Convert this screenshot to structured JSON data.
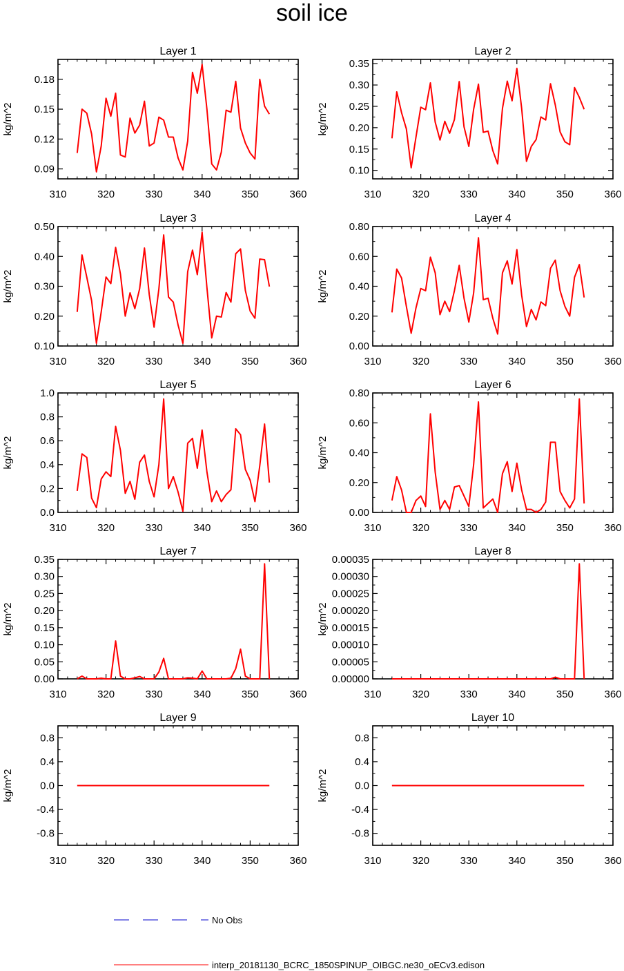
{
  "figure": {
    "title": "soil ice",
    "legend": {
      "obs_label": "No Obs",
      "obs_color": "#0000cc",
      "model_label": "interp_20181130_BCRC_1850SPINUP_OIBGC.ne30_oECv3.edison",
      "model_color": "#ff0000"
    }
  },
  "chart_data": [
    {
      "type": "line",
      "title": "Layer 1",
      "ylabel": "kg/m^2",
      "xlim": [
        310,
        360
      ],
      "ylim": [
        0.08,
        0.2
      ],
      "xticks": [
        "310",
        "320",
        "330",
        "340",
        "350",
        "360"
      ],
      "yticks": [
        "0.09",
        "0.12",
        "0.15",
        "0.18"
      ],
      "x": [
        314,
        315,
        316,
        317,
        318,
        319,
        320,
        321,
        322,
        323,
        324,
        325,
        326,
        327,
        328,
        329,
        330,
        331,
        332,
        333,
        334,
        335,
        336,
        337,
        338,
        339,
        340,
        341,
        342,
        343,
        344,
        345,
        346,
        347,
        348,
        349,
        350,
        351,
        352,
        353,
        354
      ],
      "values": [
        0.106,
        0.15,
        0.146,
        0.125,
        0.087,
        0.113,
        0.161,
        0.143,
        0.166,
        0.104,
        0.102,
        0.141,
        0.126,
        0.134,
        0.158,
        0.113,
        0.116,
        0.142,
        0.139,
        0.122,
        0.122,
        0.101,
        0.089,
        0.118,
        0.187,
        0.166,
        0.195,
        0.15,
        0.095,
        0.089,
        0.107,
        0.149,
        0.147,
        0.178,
        0.131,
        0.116,
        0.106,
        0.1,
        0.18,
        0.153,
        0.145
      ]
    },
    {
      "type": "line",
      "title": "Layer 2",
      "ylabel": "kg/m^2",
      "xlim": [
        310,
        360
      ],
      "ylim": [
        0.08,
        0.36
      ],
      "xticks": [
        "310",
        "320",
        "330",
        "340",
        "350",
        "360"
      ],
      "yticks": [
        "0.10",
        "0.15",
        "0.20",
        "0.25",
        "0.30",
        "0.35"
      ],
      "x": [
        314,
        315,
        316,
        317,
        318,
        319,
        320,
        321,
        322,
        323,
        324,
        325,
        326,
        327,
        328,
        329,
        330,
        331,
        332,
        333,
        334,
        335,
        336,
        337,
        338,
        339,
        340,
        341,
        342,
        343,
        344,
        345,
        346,
        347,
        348,
        349,
        350,
        351,
        352,
        353,
        354
      ],
      "values": [
        0.175,
        0.284,
        0.235,
        0.197,
        0.106,
        0.178,
        0.248,
        0.242,
        0.305,
        0.213,
        0.171,
        0.215,
        0.187,
        0.219,
        0.308,
        0.202,
        0.156,
        0.243,
        0.302,
        0.189,
        0.192,
        0.146,
        0.115,
        0.245,
        0.309,
        0.263,
        0.339,
        0.245,
        0.121,
        0.156,
        0.172,
        0.225,
        0.218,
        0.303,
        0.253,
        0.19,
        0.167,
        0.16,
        0.294,
        0.271,
        0.243
      ]
    },
    {
      "type": "line",
      "title": "Layer 3",
      "ylabel": "kg/m^2",
      "xlim": [
        310,
        360
      ],
      "ylim": [
        0.1,
        0.5
      ],
      "xticks": [
        "310",
        "320",
        "330",
        "340",
        "350",
        "360"
      ],
      "yticks": [
        "0.10",
        "0.20",
        "0.30",
        "0.40",
        "0.50"
      ],
      "x": [
        314,
        315,
        316,
        317,
        318,
        319,
        320,
        321,
        322,
        323,
        324,
        325,
        326,
        327,
        328,
        329,
        330,
        331,
        332,
        333,
        334,
        335,
        336,
        337,
        338,
        339,
        340,
        341,
        342,
        343,
        344,
        345,
        346,
        347,
        348,
        349,
        350,
        351,
        352,
        353,
        354
      ],
      "values": [
        0.214,
        0.405,
        0.33,
        0.252,
        0.109,
        0.214,
        0.331,
        0.309,
        0.43,
        0.341,
        0.2,
        0.278,
        0.225,
        0.292,
        0.428,
        0.272,
        0.163,
        0.291,
        0.472,
        0.264,
        0.247,
        0.17,
        0.109,
        0.349,
        0.421,
        0.339,
        0.481,
        0.296,
        0.127,
        0.2,
        0.197,
        0.279,
        0.247,
        0.409,
        0.425,
        0.286,
        0.217,
        0.193,
        0.391,
        0.389,
        0.299
      ]
    },
    {
      "type": "line",
      "title": "Layer 4",
      "ylabel": "kg/m^2",
      "xlim": [
        310,
        360
      ],
      "ylim": [
        0.0,
        0.8
      ],
      "xticks": [
        "310",
        "320",
        "330",
        "340",
        "350",
        "360"
      ],
      "yticks": [
        "0.00",
        "0.20",
        "0.40",
        "0.60",
        "0.80"
      ],
      "x": [
        314,
        315,
        316,
        317,
        318,
        319,
        320,
        321,
        322,
        323,
        324,
        325,
        326,
        327,
        328,
        329,
        330,
        331,
        332,
        333,
        334,
        335,
        336,
        337,
        338,
        339,
        340,
        341,
        342,
        343,
        344,
        345,
        346,
        347,
        348,
        349,
        350,
        351,
        352,
        353,
        354
      ],
      "values": [
        0.225,
        0.515,
        0.455,
        0.265,
        0.085,
        0.255,
        0.385,
        0.37,
        0.595,
        0.49,
        0.21,
        0.3,
        0.23,
        0.37,
        0.54,
        0.32,
        0.16,
        0.355,
        0.725,
        0.31,
        0.32,
        0.185,
        0.08,
        0.49,
        0.57,
        0.415,
        0.645,
        0.34,
        0.13,
        0.245,
        0.175,
        0.295,
        0.27,
        0.52,
        0.575,
        0.37,
        0.265,
        0.2,
        0.46,
        0.545,
        0.325
      ]
    },
    {
      "type": "line",
      "title": "Layer 5",
      "ylabel": "kg/m^2",
      "xlim": [
        310,
        360
      ],
      "ylim": [
        0.0,
        1.0
      ],
      "xticks": [
        "310",
        "320",
        "330",
        "340",
        "350",
        "360"
      ],
      "yticks": [
        "0.0",
        "0.2",
        "0.4",
        "0.6",
        "0.8",
        "1.0"
      ],
      "x": [
        314,
        315,
        316,
        317,
        318,
        319,
        320,
        321,
        322,
        323,
        324,
        325,
        326,
        327,
        328,
        329,
        330,
        331,
        332,
        333,
        334,
        335,
        336,
        337,
        338,
        339,
        340,
        341,
        342,
        343,
        344,
        345,
        346,
        347,
        348,
        349,
        350,
        351,
        352,
        353,
        354
      ],
      "values": [
        0.18,
        0.49,
        0.46,
        0.12,
        0.04,
        0.28,
        0.34,
        0.3,
        0.72,
        0.52,
        0.16,
        0.26,
        0.11,
        0.42,
        0.48,
        0.26,
        0.13,
        0.4,
        0.95,
        0.2,
        0.3,
        0.17,
        0.01,
        0.58,
        0.62,
        0.37,
        0.69,
        0.34,
        0.09,
        0.18,
        0.09,
        0.15,
        0.19,
        0.7,
        0.65,
        0.36,
        0.27,
        0.09,
        0.39,
        0.74,
        0.25
      ]
    },
    {
      "type": "line",
      "title": "Layer 6",
      "ylabel": "kg/m^2",
      "xlim": [
        310,
        360
      ],
      "ylim": [
        0.0,
        0.8
      ],
      "xticks": [
        "310",
        "320",
        "330",
        "340",
        "350",
        "360"
      ],
      "yticks": [
        "0.00",
        "0.20",
        "0.40",
        "0.60",
        "0.80"
      ],
      "x": [
        314,
        315,
        316,
        317,
        318,
        319,
        320,
        321,
        322,
        323,
        324,
        325,
        326,
        327,
        328,
        329,
        330,
        331,
        332,
        333,
        334,
        335,
        336,
        337,
        338,
        339,
        340,
        341,
        342,
        343,
        344,
        345,
        346,
        347,
        348,
        349,
        350,
        351,
        352,
        353,
        354
      ],
      "values": [
        0.08,
        0.24,
        0.15,
        0.0,
        0.0,
        0.08,
        0.11,
        0.04,
        0.66,
        0.27,
        0.02,
        0.08,
        0.02,
        0.17,
        0.18,
        0.11,
        0.04,
        0.32,
        0.74,
        0.03,
        0.06,
        0.09,
        0.0,
        0.26,
        0.34,
        0.14,
        0.33,
        0.15,
        0.02,
        0.02,
        0.0,
        0.02,
        0.07,
        0.47,
        0.47,
        0.14,
        0.08,
        0.03,
        0.09,
        0.76,
        0.06
      ]
    },
    {
      "type": "line",
      "title": "Layer 7",
      "ylabel": "kg/m^2",
      "xlim": [
        310,
        360
      ],
      "ylim": [
        0.0,
        0.35
      ],
      "xticks": [
        "310",
        "320",
        "330",
        "340",
        "350",
        "360"
      ],
      "yticks": [
        "0.00",
        "0.05",
        "0.10",
        "0.15",
        "0.20",
        "0.25",
        "0.30",
        "0.35"
      ],
      "x": [
        314,
        315,
        316,
        317,
        318,
        319,
        320,
        321,
        322,
        323,
        324,
        325,
        326,
        327,
        328,
        329,
        330,
        331,
        332,
        333,
        334,
        335,
        336,
        337,
        338,
        339,
        340,
        341,
        342,
        343,
        344,
        345,
        346,
        347,
        348,
        349,
        350,
        351,
        352,
        353,
        354
      ],
      "values": [
        0.0,
        0.008,
        0.0,
        0.0,
        0.0,
        0.002,
        0.0,
        0.0,
        0.111,
        0.008,
        0.0,
        0.0,
        0.003,
        0.007,
        0.0,
        0.0,
        0.0,
        0.02,
        0.06,
        0.0,
        0.0,
        0.0,
        0.0,
        0.003,
        0.002,
        0.0,
        0.023,
        0.0,
        0.0,
        0.0,
        0.0,
        0.0,
        0.002,
        0.03,
        0.087,
        0.008,
        0.0,
        0.0,
        0.0,
        0.337,
        0.0
      ]
    },
    {
      "type": "line",
      "title": "Layer 8",
      "ylabel": "kg/m^2",
      "xlim": [
        310,
        360
      ],
      "ylim": [
        0.0,
        0.00035
      ],
      "xticks": [
        "310",
        "320",
        "330",
        "340",
        "350",
        "360"
      ],
      "yticks": [
        "0.00000",
        "0.00005",
        "0.00010",
        "0.00015",
        "0.00020",
        "0.00025",
        "0.00030",
        "0.00035"
      ],
      "x": [
        314,
        315,
        316,
        317,
        318,
        319,
        320,
        321,
        322,
        323,
        324,
        325,
        326,
        327,
        328,
        329,
        330,
        331,
        332,
        333,
        334,
        335,
        336,
        337,
        338,
        339,
        340,
        341,
        342,
        343,
        344,
        345,
        346,
        347,
        348,
        349,
        350,
        351,
        352,
        353,
        354
      ],
      "values": [
        0,
        0,
        0,
        0,
        0,
        0,
        0,
        0,
        0,
        0,
        0,
        0,
        0,
        0,
        0,
        0,
        0,
        0,
        0,
        0,
        0,
        0,
        0,
        0,
        0,
        0,
        0,
        0,
        0,
        0,
        0,
        0,
        0,
        0,
        5e-06,
        0,
        0,
        0,
        0,
        0.000337,
        0
      ]
    },
    {
      "type": "line",
      "title": "Layer 9",
      "ylabel": "kg/m^2",
      "xlim": [
        310,
        360
      ],
      "ylim": [
        -1.0,
        1.0
      ],
      "xticks": [
        "310",
        "320",
        "330",
        "340",
        "350",
        "360"
      ],
      "yticks": [
        "-0.8",
        "-0.4",
        "0.0",
        "0.4",
        "0.8"
      ],
      "x": [
        314,
        315,
        316,
        317,
        318,
        319,
        320,
        321,
        322,
        323,
        324,
        325,
        326,
        327,
        328,
        329,
        330,
        331,
        332,
        333,
        334,
        335,
        336,
        337,
        338,
        339,
        340,
        341,
        342,
        343,
        344,
        345,
        346,
        347,
        348,
        349,
        350,
        351,
        352,
        353,
        354
      ],
      "values": [
        0,
        0,
        0,
        0,
        0,
        0,
        0,
        0,
        0,
        0,
        0,
        0,
        0,
        0,
        0,
        0,
        0,
        0,
        0,
        0,
        0,
        0,
        0,
        0,
        0,
        0,
        0,
        0,
        0,
        0,
        0,
        0,
        0,
        0,
        0,
        0,
        0,
        0,
        0,
        0,
        0
      ]
    },
    {
      "type": "line",
      "title": "Layer 10",
      "ylabel": "kg/m^2",
      "xlim": [
        310,
        360
      ],
      "ylim": [
        -1.0,
        1.0
      ],
      "xticks": [
        "310",
        "320",
        "330",
        "340",
        "350",
        "360"
      ],
      "yticks": [
        "-0.8",
        "-0.4",
        "0.0",
        "0.4",
        "0.8"
      ],
      "x": [
        314,
        315,
        316,
        317,
        318,
        319,
        320,
        321,
        322,
        323,
        324,
        325,
        326,
        327,
        328,
        329,
        330,
        331,
        332,
        333,
        334,
        335,
        336,
        337,
        338,
        339,
        340,
        341,
        342,
        343,
        344,
        345,
        346,
        347,
        348,
        349,
        350,
        351,
        352,
        353,
        354
      ],
      "values": [
        0,
        0,
        0,
        0,
        0,
        0,
        0,
        0,
        0,
        0,
        0,
        0,
        0,
        0,
        0,
        0,
        0,
        0,
        0,
        0,
        0,
        0,
        0,
        0,
        0,
        0,
        0,
        0,
        0,
        0,
        0,
        0,
        0,
        0,
        0,
        0,
        0,
        0,
        0,
        0,
        0
      ]
    }
  ]
}
